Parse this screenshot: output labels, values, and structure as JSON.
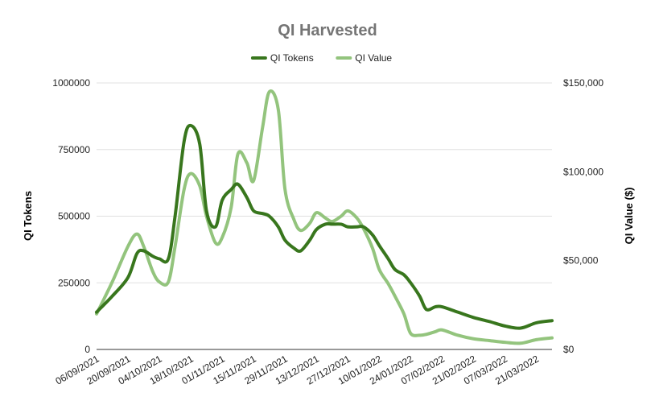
{
  "chart_data": {
    "type": "line",
    "title": "QI Harvested",
    "ylabel": "QI Tokens",
    "y2label": "QI Value ($)",
    "ylim": [
      0,
      1000000
    ],
    "y2lim": [
      0,
      150000
    ],
    "yticks": [
      0,
      250000,
      500000,
      750000,
      1000000
    ],
    "yticklabels": [
      "0",
      "250000",
      "500000",
      "750000",
      "1000000"
    ],
    "y2ticks": [
      0,
      50000,
      100000,
      150000
    ],
    "y2ticklabels": [
      "$0",
      "$50,000",
      "$100,000",
      "$150,000"
    ],
    "xticklabels": [
      "06/09/2021",
      "20/09/2021",
      "04/10/2021",
      "18/10/2021",
      "01/11/2021",
      "15/11/2021",
      "29/11/2021",
      "13/12/2021",
      "27/12/2021",
      "10/01/2022",
      "24/01/2022",
      "07/02/2022",
      "21/02/2022",
      "07/03/2022",
      "21/03/2022"
    ],
    "xlim": [
      "06/09/2021",
      "28/03/2022"
    ],
    "grid": true,
    "legend_position": "top",
    "series": [
      {
        "name": "QI Tokens",
        "axis": "left",
        "color": "#38761d",
        "x": [
          "06/09/2021",
          "13/09/2021",
          "20/09/2021",
          "24/09/2021",
          "27/09/2021",
          "01/10/2021",
          "04/10/2021",
          "08/10/2021",
          "11/10/2021",
          "15/10/2021",
          "18/10/2021",
          "22/10/2021",
          "25/10/2021",
          "29/10/2021",
          "01/11/2021",
          "05/11/2021",
          "08/11/2021",
          "12/11/2021",
          "15/11/2021",
          "19/11/2021",
          "22/11/2021",
          "26/11/2021",
          "29/11/2021",
          "03/12/2021",
          "06/12/2021",
          "10/12/2021",
          "13/12/2021",
          "17/12/2021",
          "20/12/2021",
          "24/12/2021",
          "27/12/2021",
          "31/12/2021",
          "03/01/2022",
          "07/01/2022",
          "10/01/2022",
          "14/01/2022",
          "17/01/2022",
          "21/01/2022",
          "24/01/2022",
          "28/01/2022",
          "31/01/2022",
          "04/02/2022",
          "07/02/2022",
          "14/02/2022",
          "21/02/2022",
          "28/02/2022",
          "07/03/2022",
          "14/03/2022",
          "21/03/2022",
          "28/03/2022"
        ],
        "values": [
          140000,
          200000,
          270000,
          360000,
          370000,
          350000,
          340000,
          340000,
          500000,
          780000,
          840000,
          770000,
          520000,
          460000,
          560000,
          600000,
          620000,
          570000,
          520000,
          510000,
          500000,
          460000,
          410000,
          380000,
          370000,
          410000,
          450000,
          470000,
          470000,
          470000,
          460000,
          460000,
          460000,
          430000,
          390000,
          340000,
          300000,
          280000,
          250000,
          200000,
          150000,
          160000,
          160000,
          140000,
          120000,
          105000,
          88000,
          80000,
          100000,
          108000
        ]
      },
      {
        "name": "QI Value",
        "axis": "right",
        "color": "#93c47d",
        "x": [
          "06/09/2021",
          "13/09/2021",
          "20/09/2021",
          "24/09/2021",
          "27/09/2021",
          "01/10/2021",
          "04/10/2021",
          "08/10/2021",
          "11/10/2021",
          "15/10/2021",
          "18/10/2021",
          "22/10/2021",
          "25/10/2021",
          "29/10/2021",
          "01/11/2021",
          "05/11/2021",
          "08/11/2021",
          "12/11/2021",
          "15/11/2021",
          "19/11/2021",
          "22/11/2021",
          "26/11/2021",
          "29/11/2021",
          "03/12/2021",
          "06/12/2021",
          "10/12/2021",
          "13/12/2021",
          "17/12/2021",
          "20/12/2021",
          "24/12/2021",
          "27/12/2021",
          "31/12/2021",
          "03/01/2022",
          "07/01/2022",
          "10/01/2022",
          "14/01/2022",
          "17/01/2022",
          "21/01/2022",
          "24/01/2022",
          "28/01/2022",
          "31/01/2022",
          "04/02/2022",
          "07/02/2022",
          "14/02/2022",
          "21/02/2022",
          "28/02/2022",
          "07/03/2022",
          "14/03/2022",
          "21/03/2022",
          "28/03/2022"
        ],
        "values": [
          20000,
          38000,
          58000,
          65000,
          58000,
          44000,
          38000,
          38000,
          58000,
          90000,
          99000,
          92000,
          75000,
          60000,
          63000,
          80000,
          110000,
          105000,
          95000,
          125000,
          145000,
          135000,
          90000,
          73000,
          67000,
          71000,
          77000,
          74000,
          72000,
          75000,
          78000,
          74000,
          68000,
          57000,
          45000,
          37000,
          30000,
          20000,
          9000,
          8000,
          8500,
          10000,
          11000,
          8000,
          6000,
          5000,
          4000,
          3500,
          5500,
          6500
        ]
      }
    ]
  }
}
